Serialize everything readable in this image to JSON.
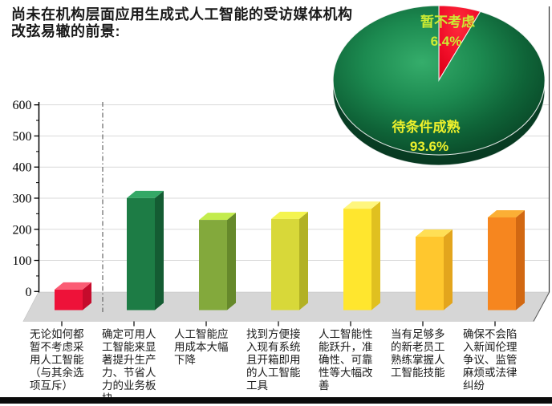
{
  "title": {
    "lines": [
      "尚未在机构层面应用生成式人工智能的受访媒体机构",
      "改弦易辙的前景:"
    ]
  },
  "chart_data": [
    {
      "type": "bar",
      "subtype": "3d-column",
      "title": "",
      "xlabel": "",
      "ylabel": "",
      "ylim": [
        0,
        600
      ],
      "ytick_step": 100,
      "ytick_minor_step": 50,
      "grid": true,
      "legend": "none",
      "categories": [
        "无论如何都暂不考虑采用人工智能（与其余选项互斥）",
        "确定可用人工智能来显著提升生产力、节省人力的业务板块",
        "人工智能应用成本大幅下降",
        "找到方便接入现有系统且开箱即用的人工智能工具",
        "人工智能性能跃升，准确性、可靠性等大幅改善",
        "当有足够多的新老员工熟练掌握人工智能技能",
        "确保不会陷入新闻伦理争议、监管麻烦或法律纠纷"
      ],
      "values": [
        66,
        360,
        290,
        293,
        326,
        236,
        298
      ],
      "values_note": "estimated from gridlines",
      "bar_colors": [
        {
          "front": "#EE1239",
          "top": "#FB5C74",
          "side": "#C50B2C"
        },
        {
          "front": "#1D7C45",
          "top": "#34A866",
          "side": "#145C33"
        },
        {
          "front": "#83A93C",
          "top": "#C3EC4D",
          "side": "#66892B"
        },
        {
          "front": "#D8D839",
          "top": "#F4F44F",
          "side": "#B2B125"
        },
        {
          "front": "#FFE62E",
          "top": "#FFF67E",
          "side": "#E0C020"
        },
        {
          "front": "#FFC72E",
          "top": "#FFDF55",
          "side": "#E3A51D"
        },
        {
          "front": "#F6861F",
          "top": "#FBAF35",
          "side": "#D26812"
        }
      ],
      "separator_after_first_category": true
    },
    {
      "type": "pie",
      "subtype": "3d-pie",
      "title": "",
      "legend": "none",
      "slices": [
        {
          "label": "暂不考虑",
          "pct": 6.4,
          "pct_label": "6.4%",
          "color": "#EE0B22",
          "label_color": "#CCEB33"
        },
        {
          "label": "待条件成熟",
          "pct": 93.6,
          "pct_label": "93.6%",
          "color": "#147A44",
          "label_color": "#EDF02C"
        }
      ],
      "start_angle_deg": 90,
      "direction": "clockwise"
    }
  ],
  "colors": {
    "gridline": "#D9D9D9",
    "floor": "#D6D6D6",
    "axis": "#000000",
    "separator_line": "#666666",
    "bottom_strip": "#0B0B0B"
  }
}
